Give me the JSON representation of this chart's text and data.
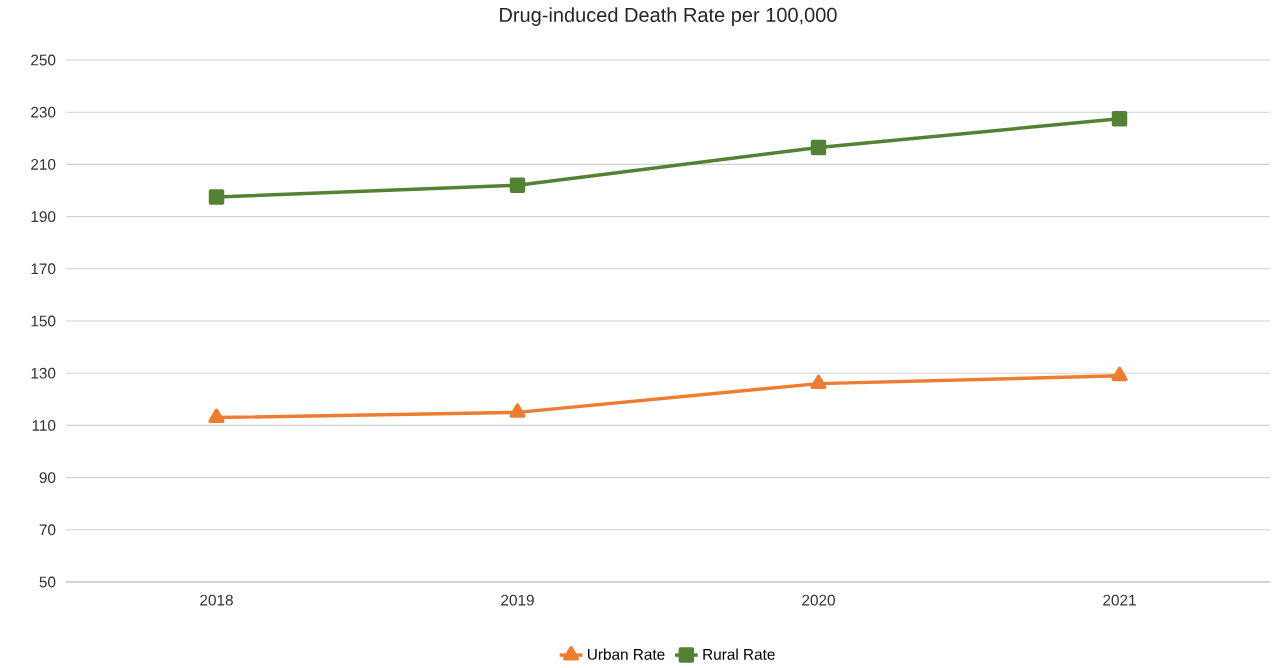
{
  "chart_data": {
    "type": "line",
    "title": "Drug-induced Death Rate per 100,000",
    "categories": [
      "2018",
      "2019",
      "2020",
      "2021"
    ],
    "series": [
      {
        "name": "Urban Rate",
        "color": "#ed7d31",
        "marker": "triangle",
        "values": [
          113,
          115,
          126,
          129
        ]
      },
      {
        "name": "Rural Rate",
        "color": "#548235",
        "marker": "square",
        "values": [
          197.5,
          202,
          216.5,
          227.5
        ]
      }
    ],
    "ylim": [
      50,
      250
    ],
    "yticks": [
      50,
      70,
      90,
      110,
      130,
      150,
      170,
      190,
      210,
      230,
      250
    ],
    "grid": "y",
    "legend": "bottom"
  }
}
